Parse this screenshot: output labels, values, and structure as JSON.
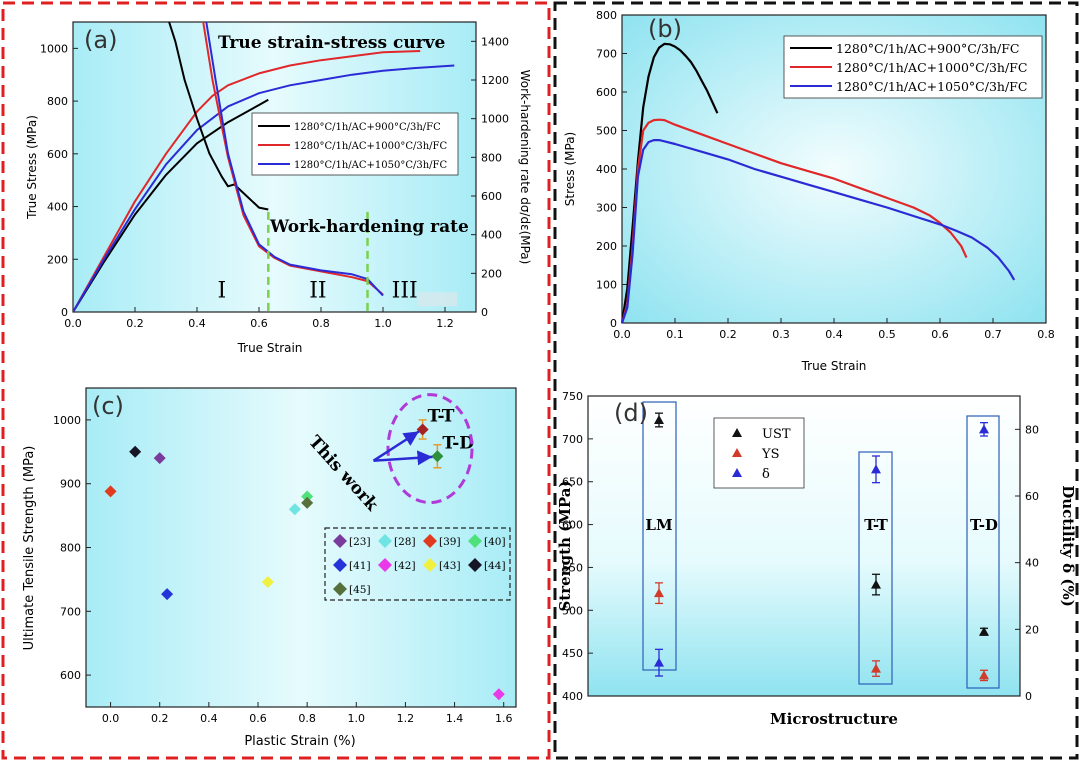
{
  "colors": {
    "black": "#000000",
    "red": "#e0282a",
    "blue": "#2b2bd6",
    "dash_red": "#e02020",
    "dash_black": "#111111",
    "purple": "#b03ad8",
    "green": "#7bd24a"
  },
  "chart_data": [
    {
      "id": "a",
      "panel_label": "(a)",
      "type": "line",
      "title": "True strain-stress curve",
      "annotation": "Work-hardening rate",
      "xlabel": "True Strain",
      "ylabel": "True Stress (MPa)",
      "y2label": "Work-hardening rate dσ/dε(MPa)",
      "xlim": [
        0,
        1.3
      ],
      "ylim": [
        0,
        1100
      ],
      "y2lim": [
        0,
        1500
      ],
      "xticks": [
        0.0,
        0.2,
        0.4,
        0.6,
        0.8,
        1.0,
        1.2
      ],
      "yticks": [
        0,
        200,
        400,
        600,
        800,
        1000
      ],
      "y2ticks": [
        0,
        200,
        400,
        600,
        800,
        1000,
        1200,
        1400
      ],
      "stages": [
        "I",
        "II",
        "III"
      ],
      "stage_boundaries": [
        0.63,
        0.95
      ],
      "legend": [
        "1280°C/1h/AC+900°C/3h/FC",
        "1280°C/1h/AC+1000°C/3h/FC",
        "1280°C/1h/AC+1050°C/3h/FC"
      ],
      "series": [
        {
          "name": "1280°C/1h/AC+900°C/3h/FC",
          "color": "black",
          "axis": "left",
          "x": [
            0,
            0.1,
            0.2,
            0.3,
            0.4,
            0.5,
            0.6,
            0.63
          ],
          "y": [
            0,
            190,
            370,
            520,
            640,
            720,
            785,
            805
          ]
        },
        {
          "name": "1280°C/1h/AC+1000°C/3h/FC",
          "color": "red",
          "axis": "left",
          "x": [
            0,
            0.1,
            0.2,
            0.3,
            0.4,
            0.45,
            0.5,
            0.6,
            0.7,
            0.8,
            0.9,
            1.0,
            1.12
          ],
          "y": [
            0,
            210,
            420,
            600,
            760,
            820,
            860,
            905,
            935,
            955,
            970,
            985,
            990
          ]
        },
        {
          "name": "1280°C/1h/AC+1050°C/3h/FC",
          "color": "blue",
          "axis": "left",
          "x": [
            0,
            0.1,
            0.2,
            0.3,
            0.4,
            0.5,
            0.6,
            0.7,
            0.8,
            0.9,
            1.0,
            1.1,
            1.23
          ],
          "y": [
            0,
            200,
            390,
            560,
            690,
            780,
            830,
            860,
            880,
            900,
            915,
            925,
            935
          ]
        },
        {
          "name": "1280°C/1h/AC+900°C/3h/FC",
          "color": "black",
          "axis": "right",
          "x": [
            0.31,
            0.33,
            0.36,
            0.4,
            0.44,
            0.48,
            0.5,
            0.52,
            0.56,
            0.58,
            0.6,
            0.63
          ],
          "y": [
            1500,
            1400,
            1200,
            1000,
            820,
            700,
            650,
            660,
            600,
            570,
            540,
            530
          ]
        },
        {
          "name": "1280°C/1h/AC+1000°C/3h/FC",
          "color": "red",
          "axis": "right",
          "x": [
            0.42,
            0.45,
            0.5,
            0.55,
            0.6,
            0.65,
            0.7,
            0.8,
            0.9,
            0.95,
            1.0
          ],
          "y": [
            1500,
            1200,
            800,
            500,
            340,
            280,
            240,
            210,
            180,
            160,
            90
          ]
        },
        {
          "name": "1280°C/1h/AC+1050°C/3h/FC",
          "color": "blue",
          "axis": "right",
          "x": [
            0.43,
            0.46,
            0.5,
            0.55,
            0.6,
            0.65,
            0.7,
            0.8,
            0.9,
            0.95,
            1.0
          ],
          "y": [
            1500,
            1200,
            820,
            520,
            350,
            285,
            245,
            215,
            195,
            170,
            85
          ]
        }
      ]
    },
    {
      "id": "b",
      "panel_label": "(b)",
      "type": "line",
      "xlabel": "True Strain",
      "ylabel": "Stress (MPa)",
      "xlim": [
        0,
        0.8
      ],
      "ylim": [
        0,
        800
      ],
      "xticks": [
        0.0,
        0.1,
        0.2,
        0.3,
        0.4,
        0.5,
        0.6,
        0.7,
        0.8
      ],
      "yticks": [
        0,
        100,
        200,
        300,
        400,
        500,
        600,
        700,
        800
      ],
      "legend": [
        "1280°C/1h/AC+900°C/3h/FC",
        "1280°C/1h/AC+1000°C/3h/FC",
        "1280°C/1h/AC+1050°C/3h/FC"
      ],
      "series": [
        {
          "name": "1280°C/1h/AC+900°C/3h/FC",
          "color": "black",
          "x": [
            0,
            0.01,
            0.02,
            0.03,
            0.04,
            0.05,
            0.06,
            0.07,
            0.08,
            0.09,
            0.1,
            0.11,
            0.12,
            0.13,
            0.14,
            0.15,
            0.16,
            0.17,
            0.18
          ],
          "y": [
            0,
            90,
            250,
            420,
            560,
            640,
            690,
            715,
            725,
            724,
            718,
            708,
            694,
            678,
            656,
            630,
            605,
            575,
            545
          ]
        },
        {
          "name": "1280°C/1h/AC+1000°C/3h/FC",
          "color": "red",
          "x": [
            0,
            0.01,
            0.02,
            0.03,
            0.04,
            0.05,
            0.06,
            0.07,
            0.08,
            0.1,
            0.15,
            0.2,
            0.25,
            0.3,
            0.35,
            0.4,
            0.45,
            0.5,
            0.55,
            0.58,
            0.6,
            0.62,
            0.64,
            0.65
          ],
          "y": [
            0,
            50,
            200,
            400,
            500,
            520,
            527,
            528,
            527,
            515,
            490,
            465,
            440,
            415,
            395,
            375,
            350,
            325,
            300,
            280,
            260,
            235,
            200,
            170
          ]
        },
        {
          "name": "1280°C/1h/AC+1050°C/3h/FC",
          "color": "blue",
          "x": [
            0,
            0.01,
            0.02,
            0.03,
            0.04,
            0.05,
            0.06,
            0.07,
            0.08,
            0.1,
            0.15,
            0.2,
            0.25,
            0.3,
            0.35,
            0.4,
            0.45,
            0.5,
            0.55,
            0.6,
            0.63,
            0.66,
            0.69,
            0.71,
            0.73,
            0.74
          ],
          "y": [
            0,
            40,
            180,
            380,
            450,
            470,
            475,
            475,
            472,
            465,
            445,
            425,
            400,
            380,
            360,
            340,
            320,
            300,
            278,
            256,
            240,
            222,
            195,
            170,
            135,
            112
          ]
        }
      ]
    },
    {
      "id": "c",
      "panel_label": "(c)",
      "type": "scatter",
      "xlabel": "Plastic Strain (%)",
      "ylabel": "Ultimate Tensile Strength (MPa)",
      "xlim": [
        -0.1,
        1.65
      ],
      "ylim": [
        550,
        1050
      ],
      "xticks": [
        0.0,
        0.2,
        0.4,
        0.6,
        0.8,
        1.0,
        1.2,
        1.4,
        1.6
      ],
      "yticks": [
        600,
        700,
        800,
        900,
        1000
      ],
      "this_work_label": "This work",
      "this_work": [
        {
          "label": "T-T",
          "x": 1.27,
          "y": 985,
          "err": 15,
          "color": "#a52222"
        },
        {
          "label": "T-D",
          "x": 1.33,
          "y": 943,
          "err": 18,
          "color": "#2f8f3a"
        }
      ],
      "points": [
        {
          "ref": "[23]",
          "x": 0.2,
          "y": 940,
          "color": "#7a3c9c"
        },
        {
          "ref": "[28]",
          "x": 0.75,
          "y": 860,
          "color": "#70e3e3"
        },
        {
          "ref": "[39]",
          "x": 0.0,
          "y": 888,
          "color": "#e03a1f"
        },
        {
          "ref": "[40]",
          "x": 0.8,
          "y": 880,
          "color": "#4ee07a"
        },
        {
          "ref": "[41]",
          "x": 0.23,
          "y": 727,
          "color": "#2434d8"
        },
        {
          "ref": "[42]",
          "x": 1.58,
          "y": 570,
          "color": "#e83ae8"
        },
        {
          "ref": "[43]",
          "x": 0.64,
          "y": 746,
          "color": "#f0f040"
        },
        {
          "ref": "[44]",
          "x": 0.1,
          "y": 950,
          "color": "#151525"
        },
        {
          "ref": "[45]",
          "x": 0.8,
          "y": 870,
          "color": "#55703a"
        }
      ]
    },
    {
      "id": "d",
      "panel_label": "(d)",
      "type": "scatter",
      "xlabel": "Microstructure",
      "ylabel": "Strength (MPa)",
      "y2label": "Ductility  δ (%)",
      "ylim": [
        400,
        750
      ],
      "y2lim": [
        0,
        90
      ],
      "yticks": [
        400,
        450,
        500,
        550,
        600,
        650,
        700,
        750
      ],
      "y2ticks": [
        0,
        20,
        40,
        60,
        80
      ],
      "legend": [
        "UST",
        "YS",
        "δ"
      ],
      "groups": [
        {
          "name": "LM",
          "UST": 722,
          "UST_err": 8,
          "YS": 520,
          "YS_err": 12,
          "delta": 10,
          "delta_err": 4
        },
        {
          "name": "T-T",
          "UST": 530,
          "UST_err": 12,
          "YS": 432,
          "YS_err": 9,
          "delta": 68,
          "delta_err": 4
        },
        {
          "name": "T-D",
          "UST": 475,
          "UST_err": 4,
          "YS": 424,
          "YS_err": 6,
          "delta": 80,
          "delta_err": 2
        }
      ]
    }
  ]
}
